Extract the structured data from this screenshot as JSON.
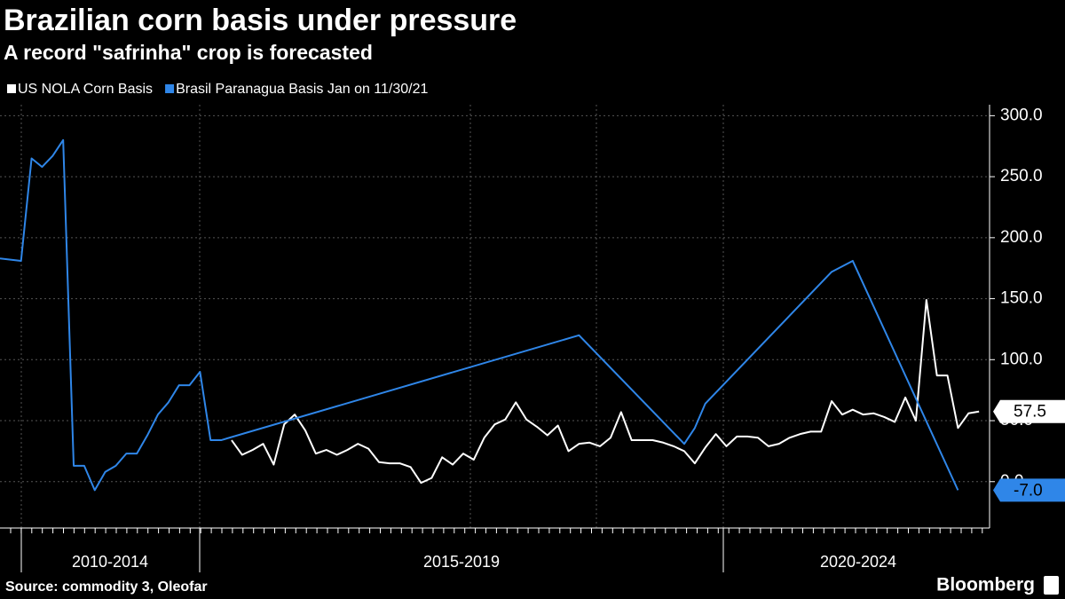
{
  "chart_data": {
    "type": "line",
    "title": "Brazilian corn basis under pressure",
    "subtitle": "A record \"safrinha\" crop is forecasted",
    "source": "Source: commodity 3, Oleofar",
    "brand": "Bloomberg",
    "x_group_labels": [
      "2010-2014",
      "2015-2019",
      "2020-2024"
    ],
    "xlim": [
      0,
      94
    ],
    "ylim": [
      -38,
      309
    ],
    "yticks": [
      {
        "value": 0,
        "label": "0.0"
      },
      {
        "value": 50,
        "label": "50.0"
      },
      {
        "value": 100,
        "label": "100.0"
      },
      {
        "value": 150,
        "label": "150.0"
      },
      {
        "value": 200,
        "label": "200.0"
      },
      {
        "value": 250,
        "label": "250.0"
      },
      {
        "value": 300,
        "label": "300.0"
      }
    ],
    "grid": true,
    "series": [
      {
        "name": "US NOLA Corn Basis",
        "color": "#ffffff",
        "x": [
          22,
          23,
          24,
          25,
          26,
          27,
          28,
          29,
          30,
          31,
          32,
          33,
          34,
          35,
          36,
          37,
          38,
          39,
          40,
          41,
          42,
          43,
          44,
          45,
          46,
          47,
          48,
          49,
          50,
          51,
          52,
          53,
          54,
          55,
          56,
          57,
          58,
          59,
          60,
          61,
          62,
          63,
          64,
          65,
          66,
          67,
          68,
          69,
          70,
          71,
          72,
          73,
          74,
          75,
          76,
          77,
          78,
          79,
          80,
          81,
          82,
          83,
          84,
          85,
          86,
          87,
          88,
          89,
          90,
          91,
          92,
          93
        ],
        "values": [
          34,
          22,
          26,
          31,
          14,
          47,
          55,
          42,
          23,
          26,
          22,
          26,
          31,
          27,
          16,
          15,
          15,
          12,
          -1,
          3,
          20,
          14,
          23,
          18,
          36,
          47,
          51,
          65,
          51,
          45,
          38,
          46,
          25,
          31,
          32,
          29,
          36,
          57,
          34,
          34,
          34,
          32,
          29,
          25,
          15,
          28,
          39,
          29,
          37,
          37,
          36,
          29,
          31,
          36,
          39,
          41,
          41,
          66,
          55,
          59,
          55,
          56,
          53,
          49,
          69,
          50,
          149,
          87,
          87,
          44,
          56,
          57.5
        ]
      },
      {
        "name": "Brasil Paranagua Basis Jan on 11/30/21",
        "color": "#2f86e8",
        "x": [
          0,
          2,
          3,
          4,
          5,
          6,
          7,
          8,
          9,
          10,
          11,
          12,
          13,
          14,
          15,
          16,
          17,
          18,
          19,
          20,
          21,
          55,
          65,
          66,
          67,
          79,
          81,
          91
        ],
        "values": [
          183,
          181,
          265,
          258,
          267,
          280,
          13,
          13,
          -7,
          8,
          13,
          23,
          23,
          38,
          55,
          65,
          79,
          79,
          90,
          34,
          34,
          120,
          31,
          44,
          64,
          172,
          181,
          -7
        ],
        "value_labels": [
          null,
          null,
          null,
          null,
          null,
          null,
          null,
          null,
          null,
          null,
          null,
          null,
          null,
          null,
          null,
          null,
          null,
          null,
          null,
          null,
          null,
          null,
          null,
          null,
          null,
          null,
          null,
          "-7.0"
        ]
      }
    ]
  }
}
